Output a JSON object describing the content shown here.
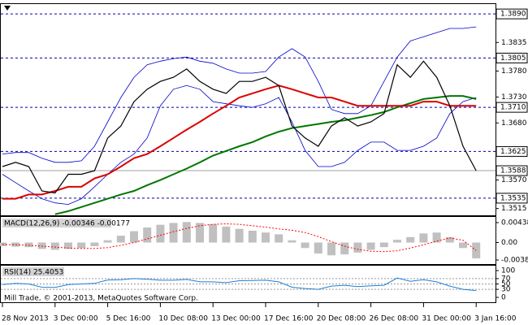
{
  "chart_data": [
    {
      "type": "line",
      "categories": [
        "28 Nov 2013",
        null,
        null,
        null,
        "3 Dec 00:00",
        null,
        null,
        null,
        "5 Dec 16:00",
        null,
        null,
        null,
        "10 Dec 08:00",
        null,
        null,
        null,
        "13 Dec 00:00",
        null,
        null,
        null,
        "17 Dec 16:00",
        null,
        null,
        null,
        "20 Dec 08:00",
        null,
        null,
        null,
        "26 Dec 08:00",
        null,
        null,
        null,
        "31 Dec 00:00",
        null,
        null,
        null,
        "3 Jan 16:00"
      ],
      "series": [
        {
          "color": "#0000cc",
          "width": 0.8,
          "values": [
            1.362,
            1.3623,
            1.3623,
            1.3612,
            1.3604,
            1.3604,
            1.3607,
            1.3635,
            1.3682,
            1.3729,
            1.3768,
            1.3792,
            1.3799,
            1.3804,
            1.3807,
            1.3799,
            1.3795,
            1.3784,
            1.3776,
            1.3776,
            1.3779,
            1.3807,
            1.3823,
            1.3807,
            1.376,
            1.3706,
            1.3698,
            1.3698,
            1.3713,
            1.376,
            1.3807,
            1.3838,
            1.3846,
            1.3854,
            1.3862,
            1.3862,
            1.3865
          ]
        },
        {
          "color": "#0000cc",
          "width": 0.8,
          "values": [
            1.3581,
            1.3565,
            1.3549,
            1.3534,
            1.3526,
            1.3523,
            1.3534,
            1.3557,
            1.3581,
            1.3604,
            1.362,
            1.3651,
            1.3713,
            1.3745,
            1.3752,
            1.3745,
            1.3721,
            1.3717,
            1.3713,
            1.371,
            1.3717,
            1.3729,
            1.3682,
            1.3627,
            1.3596,
            1.3596,
            1.3604,
            1.3627,
            1.3643,
            1.3643,
            1.3627,
            1.3627,
            1.3635,
            1.3651,
            1.3698,
            1.3721,
            1.3729
          ]
        },
        {
          "color": "#007700",
          "width": 2,
          "values": [
            null,
            null,
            null,
            null,
            1.3504,
            1.351,
            1.3518,
            1.3526,
            1.3534,
            1.3542,
            1.3549,
            1.356,
            1.357,
            1.3581,
            1.3592,
            1.3604,
            1.3617,
            1.3626,
            1.3635,
            1.3643,
            1.3654,
            1.3663,
            1.367,
            1.3674,
            1.3678,
            1.3682,
            1.3685,
            1.369,
            1.3695,
            1.3701,
            1.371,
            1.3718,
            1.3726,
            1.3729,
            1.3732,
            1.3732,
            1.3726
          ]
        },
        {
          "color": "#dd0000",
          "width": 2,
          "values": [
            1.3534,
            1.3534,
            1.3542,
            1.3542,
            1.3549,
            1.3557,
            1.3557,
            1.3573,
            1.3581,
            1.3596,
            1.3612,
            1.362,
            1.3635,
            1.3651,
            1.3667,
            1.3682,
            1.3698,
            1.3713,
            1.3729,
            1.3737,
            1.3745,
            1.3752,
            1.3745,
            1.3737,
            1.3729,
            1.3729,
            1.3721,
            1.3713,
            1.3713,
            1.3713,
            1.3713,
            1.3713,
            1.3721,
            1.3721,
            1.3713,
            1.3713,
            1.3713
          ]
        },
        {
          "color": "#000000",
          "width": 1.2,
          "values": [
            1.3596,
            1.3604,
            1.3596,
            1.3549,
            1.3545,
            1.3581,
            1.3581,
            1.3588,
            1.3651,
            1.3674,
            1.3721,
            1.3745,
            1.376,
            1.3768,
            1.3784,
            1.376,
            1.3745,
            1.3737,
            1.376,
            1.376,
            1.3768,
            1.3752,
            1.3674,
            1.3651,
            1.3635,
            1.3674,
            1.369,
            1.3674,
            1.3682,
            1.3698,
            1.3792,
            1.3768,
            1.3799,
            1.3768,
            1.3713,
            1.3635,
            1.3588
          ]
        }
      ],
      "ylim": [
        1.3502,
        1.3909
      ],
      "yticks": [
        {
          "value": 1.378,
          "label": "1.3780"
        },
        1.3835,
        {
          "value": 1.373,
          "label": "1.3730"
        },
        {
          "value": 1.368,
          "label": "1.3680"
        },
        {
          "value": 1.357,
          "label": "1.3570"
        },
        1.3515
      ],
      "levels": [
        {
          "value": 1.389,
          "label": "1.3890"
        },
        1.3805,
        {
          "value": 1.371,
          "label": "1.3710"
        },
        1.3625,
        1.3535
      ],
      "level_color": "#0000aa",
      "last_price": 1.3588
    },
    {
      "type": "macd",
      "title": "MACD(12,26,9) -0.00346 -0.00177",
      "series": [
        {
          "color": "#c0c0c0",
          "values": [
            -0.0008,
            -0.0009,
            -0.001,
            -0.0014,
            -0.0016,
            -0.0014,
            -0.0012,
            -0.0008,
            0.0005,
            0.0015,
            0.0025,
            0.0033,
            0.0039,
            0.0043,
            0.0045,
            0.0043,
            0.004,
            0.0035,
            0.003,
            0.0026,
            0.0022,
            0.0018,
            0.0005,
            -0.0012,
            -0.0024,
            -0.0028,
            -0.0026,
            -0.0022,
            -0.0016,
            -0.001,
            0.0006,
            0.0012,
            0.002,
            0.0022,
            0.0012,
            -0.0012,
            -0.00346
          ]
        },
        {
          "color": "#ff0000",
          "values": [
            -0.0004,
            -0.0005,
            -0.0006,
            -0.0008,
            -0.001,
            -0.0012,
            -0.0013,
            -0.0013,
            -0.0011,
            -0.0006,
            0.0,
            0.0008,
            0.0016,
            0.0024,
            0.0031,
            0.0037,
            0.004,
            0.0041,
            0.004,
            0.0037,
            0.0034,
            0.003,
            0.0027,
            0.0022,
            0.0013,
            0.0002,
            -0.0008,
            -0.0015,
            -0.0019,
            -0.002,
            -0.0018,
            -0.0012,
            -0.0005,
            0.0003,
            0.001,
            0.0005,
            -0.00177
          ]
        }
      ],
      "ylim": [
        -0.0049,
        0.0058
      ],
      "yticks": [
        0.00438,
        {
          "value": 0,
          "label": "0.00"
        },
        -0.00383
      ]
    },
    {
      "type": "rsi",
      "title": "RSI(14) 25.4053",
      "series": [
        {
          "color": "#1e7fd8",
          "values": [
            48,
            52,
            50,
            38,
            37,
            48,
            50,
            52,
            65,
            66,
            70,
            68,
            64,
            64,
            67,
            58,
            58,
            55,
            62,
            63,
            64,
            58,
            38,
            33,
            30,
            42,
            45,
            40,
            43,
            45,
            72,
            60,
            66,
            58,
            42,
            30,
            25.4053
          ]
        }
      ],
      "ylim": [
        0,
        100
      ],
      "yticks": [
        100,
        70,
        50,
        30,
        0
      ],
      "grid": true,
      "footer": "Mill Trade, © 2001-2013, MetaQuotes Software Corp."
    }
  ]
}
